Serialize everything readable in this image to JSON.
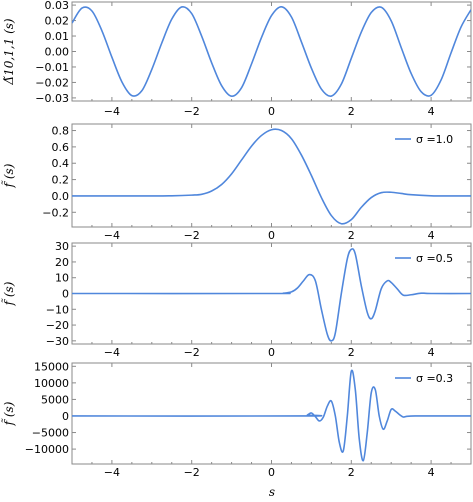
{
  "series_color": "#5087dc",
  "xlabel": "s",
  "chart_data": [
    {
      "type": "line",
      "ylabel": "Δ̃10,1,1 (s)",
      "xlim": [
        -5,
        5
      ],
      "ylim": [
        -0.032,
        0.032
      ],
      "xticks": [
        -4,
        -2,
        0,
        2,
        4
      ],
      "xtick_labels": [
        "−4",
        "−2",
        "0",
        "2",
        "4"
      ],
      "yticks": [
        -0.03,
        -0.02,
        -0.01,
        0,
        0.01,
        0.02,
        0.03
      ],
      "ytick_labels": [
        "−0.03",
        "−0.02",
        "−0.01",
        "0.00",
        "0.01",
        "0.02",
        "0.03"
      ],
      "series": [
        {
          "x": [
            -5.0,
            -4.75,
            -4.5,
            -4.25,
            -4.0,
            -3.75,
            -3.5,
            -3.25,
            -3.0,
            -2.75,
            -2.5,
            -2.25,
            -2.0,
            -1.75,
            -1.5,
            -1.25,
            -1.0,
            -0.75,
            -0.5,
            -0.25,
            0.0,
            0.25,
            0.5,
            0.75,
            1.0,
            1.25,
            1.5,
            1.75,
            2.0,
            2.25,
            2.5,
            2.75,
            3.0,
            3.25,
            3.5,
            3.75,
            4.0,
            4.25,
            4.5,
            4.75,
            5.0
          ],
          "y": [
            0.0184,
            0.0281,
            0.0262,
            0.0134,
            -0.0037,
            -0.0196,
            -0.0285,
            -0.0254,
            -0.0116,
            0.0055,
            0.0209,
            0.0288,
            0.0245,
            0.0099,
            -0.0073,
            -0.0221,
            -0.0289,
            -0.0234,
            -0.008,
            0.0091,
            0.0232,
            0.0289,
            0.0223,
            0.0062,
            -0.0108,
            -0.0243,
            -0.0288,
            -0.0211,
            -0.0044,
            0.0125,
            0.0252,
            0.0286,
            0.0198,
            0.0026,
            -0.0142,
            -0.026,
            -0.0283,
            -0.0184,
            -0.0009,
            0.0158,
            0.027
          ]
        }
      ]
    },
    {
      "type": "line",
      "ylabel": "f̃ (s)",
      "xlim": [
        -5,
        5
      ],
      "ylim": [
        -0.38,
        0.88
      ],
      "xticks": [
        -4,
        -2,
        0,
        2,
        4
      ],
      "xtick_labels": [
        "−4",
        "−2",
        "0",
        "2",
        "4"
      ],
      "yticks": [
        -0.2,
        0,
        0.2,
        0.4,
        0.6,
        0.8
      ],
      "ytick_labels": [
        "−0.2",
        "0.0",
        "0.2",
        "0.4",
        "0.6",
        "0.8"
      ],
      "legend": "σ =1.0",
      "legend_position": "top-right",
      "series": [
        {
          "name": "σ =1.0",
          "x": [
            -5.0,
            -3.0,
            -2.5,
            -2.0,
            -1.75,
            -1.5,
            -1.25,
            -1.0,
            -0.75,
            -0.5,
            -0.25,
            0.0,
            0.25,
            0.5,
            0.75,
            1.0,
            1.25,
            1.5,
            1.75,
            2.0,
            2.25,
            2.5,
            2.75,
            3.0,
            3.25,
            3.5,
            4.0,
            4.5,
            5.0
          ],
          "y": [
            0.0,
            0.0,
            0.002,
            0.01,
            0.02,
            0.06,
            0.14,
            0.27,
            0.44,
            0.61,
            0.74,
            0.81,
            0.8,
            0.7,
            0.5,
            0.25,
            -0.02,
            -0.24,
            -0.34,
            -0.29,
            -0.14,
            -0.02,
            0.04,
            0.045,
            0.03,
            0.015,
            0.002,
            0.0,
            0.0
          ]
        }
      ]
    },
    {
      "type": "line",
      "ylabel": "f̃ (s)",
      "xlim": [
        -5,
        5
      ],
      "ylim": [
        -32,
        32
      ],
      "xticks": [
        -4,
        -2,
        0,
        2,
        4
      ],
      "xtick_labels": [
        "−4",
        "−2",
        "0",
        "2",
        "4"
      ],
      "yticks": [
        -30,
        -20,
        -10,
        0,
        10,
        20,
        30
      ],
      "ytick_labels": [
        "−30",
        "−20",
        "−10",
        "0",
        "10",
        "20",
        "30"
      ],
      "legend": "σ =0.5",
      "legend_position": "top-right",
      "series": [
        {
          "name": "σ =0.5",
          "x": [
            -5.0,
            0.0,
            0.3,
            0.5,
            0.65,
            0.8,
            0.95,
            1.1,
            1.25,
            1.4,
            1.5,
            1.6,
            1.75,
            1.9,
            2.0,
            2.1,
            2.25,
            2.4,
            2.5,
            2.6,
            2.75,
            2.9,
            3.0,
            3.15,
            3.3,
            3.5,
            3.75,
            4.0,
            5.0
          ],
          "y": [
            0.0,
            0.0,
            0.2,
            1.0,
            3.5,
            8.0,
            12.0,
            8.0,
            -10.0,
            -26.0,
            -30.0,
            -25.0,
            0.0,
            22.0,
            28.0,
            25.0,
            5.0,
            -12.0,
            -16.0,
            -11.0,
            3.0,
            8.0,
            7.0,
            3.0,
            -1.0,
            -0.8,
            0.2,
            0.0,
            0.0
          ]
        }
      ]
    },
    {
      "type": "line",
      "ylabel": "f̃ (s)",
      "xlim": [
        -5,
        5
      ],
      "ylim": [
        -14500,
        16000
      ],
      "xticks": [
        -4,
        -2,
        0,
        2,
        4
      ],
      "xtick_labels": [
        "−4",
        "−2",
        "0",
        "2",
        "4"
      ],
      "yticks": [
        -10000,
        -5000,
        0,
        5000,
        10000,
        15000
      ],
      "ytick_labels": [
        "−10000",
        "−5000",
        "0",
        "5000",
        "10000",
        "15000"
      ],
      "legend": "σ =0.3",
      "legend_position": "top-right",
      "series": [
        {
          "name": "σ =0.3",
          "x": [
            -5.0,
            0.8,
            0.9,
            1.0,
            1.1,
            1.2,
            1.3,
            1.4,
            1.5,
            1.6,
            1.7,
            1.8,
            1.9,
            2.0,
            2.1,
            2.2,
            2.3,
            2.4,
            2.5,
            2.6,
            2.7,
            2.8,
            2.9,
            3.0,
            3.1,
            3.2,
            3.3,
            3.4,
            3.6,
            4.0,
            5.0
          ],
          "y": [
            0.0,
            0.0,
            300.0,
            900.0,
            -200.0,
            -1500.0,
            -300.0,
            3000.0,
            4500.0,
            0.0,
            -8000.0,
            -10500.0,
            0.0,
            13500.0,
            8000.0,
            -7000.0,
            -13500.0,
            -5000.0,
            7000.0,
            8000.0,
            0.0,
            -4000.0,
            -1500.0,
            2000.0,
            1500.0,
            500.0,
            -300.0,
            -100.0,
            0.0,
            0.0,
            0.0
          ]
        }
      ]
    }
  ]
}
